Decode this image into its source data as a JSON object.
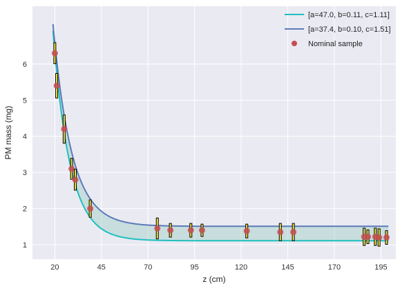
{
  "chart_data": {
    "type": "line",
    "xlabel": "z (cm)",
    "ylabel": "PM mass (mg)",
    "xlim": [
      8,
      203
    ],
    "ylim": [
      0.6,
      7.6
    ],
    "xticks": [
      20,
      45,
      70,
      95,
      120,
      145,
      170,
      195
    ],
    "yticks": [
      1,
      2,
      3,
      4,
      5,
      6
    ],
    "grid": true,
    "legend_position": "top-right",
    "series": [
      {
        "name": "[a=47.0, b=0.11, c=1.11]",
        "color": "#1fbfbf",
        "model": {
          "a": 47.0,
          "b": 0.11,
          "c": 1.11
        },
        "x": [
          19,
          21,
          23,
          25,
          27,
          29,
          31,
          34,
          37,
          40,
          44,
          48,
          55,
          62,
          75,
          90,
          110,
          140,
          170,
          199
        ],
        "y": [
          5.92,
          4.98,
          4.2,
          3.56,
          3.03,
          2.59,
          2.23,
          1.82,
          1.54,
          1.38,
          1.25,
          1.18,
          1.13,
          1.12,
          1.11,
          1.11,
          1.11,
          1.11,
          1.11,
          1.11
        ]
      },
      {
        "name": "[a=37.4, b=0.10, c=1.51]",
        "color": "#5b7ab8",
        "model": {
          "a": 37.4,
          "b": 0.1,
          "c": 1.51
        },
        "x": [
          19,
          21,
          23,
          25,
          27,
          29,
          31,
          34,
          37,
          40,
          44,
          48,
          55,
          62,
          75,
          90,
          110,
          140,
          170,
          199
        ],
        "y": [
          7.06,
          6.06,
          5.24,
          4.56,
          4.0,
          3.54,
          3.15,
          2.7,
          2.37,
          2.13,
          1.92,
          1.79,
          1.65,
          1.58,
          1.53,
          1.51,
          1.51,
          1.51,
          1.51,
          1.51
        ]
      }
    ],
    "samples": {
      "name": "Nominal sample",
      "color": "#c44e52",
      "errorbar_color": "#000000",
      "errorbar_fill": "#f0e442",
      "points": [
        {
          "x": 20,
          "y": 6.3,
          "err": 0.3
        },
        {
          "x": 21,
          "y": 5.4,
          "err": 0.35
        },
        {
          "x": 25,
          "y": 4.2,
          "err": 0.4
        },
        {
          "x": 29,
          "y": 3.1,
          "err": 0.3
        },
        {
          "x": 31,
          "y": 2.8,
          "err": 0.3
        },
        {
          "x": 39,
          "y": 2.0,
          "err": 0.25
        },
        {
          "x": 75,
          "y": 1.45,
          "err": 0.3
        },
        {
          "x": 82,
          "y": 1.4,
          "err": 0.2
        },
        {
          "x": 93,
          "y": 1.4,
          "err": 0.2
        },
        {
          "x": 99,
          "y": 1.4,
          "err": 0.18
        },
        {
          "x": 123,
          "y": 1.38,
          "err": 0.2
        },
        {
          "x": 141,
          "y": 1.35,
          "err": 0.25
        },
        {
          "x": 148,
          "y": 1.35,
          "err": 0.25
        },
        {
          "x": 186,
          "y": 1.22,
          "err": 0.25
        },
        {
          "x": 188,
          "y": 1.22,
          "err": 0.2
        },
        {
          "x": 192,
          "y": 1.22,
          "err": 0.25
        },
        {
          "x": 194,
          "y": 1.2,
          "err": 0.25
        },
        {
          "x": 198,
          "y": 1.2,
          "err": 0.2
        }
      ]
    },
    "band_fill": "#9fcfc4",
    "plot_background": "#eaeaf2"
  }
}
